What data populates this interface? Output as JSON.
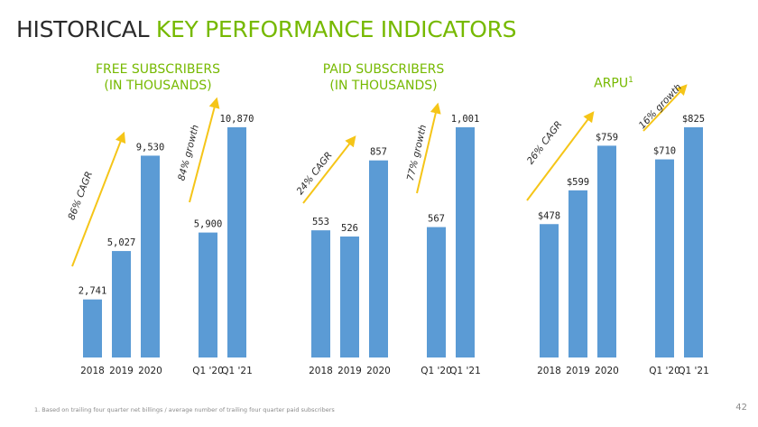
{
  "slide": {
    "title_dark": "HISTORICAL ",
    "title_accent": "KEY PERFORMANCE INDICATORS",
    "footnote": "1. Based on trailing four quarter net billings / average number of trailing four quarter paid subscribers",
    "page_number": "42"
  },
  "colors": {
    "bar": "#5b9bd5",
    "arrow": "#f5c518",
    "accent": "#76b900"
  },
  "chart_data": [
    {
      "type": "bar",
      "title_line1": "FREE SUBSCRIBERS",
      "title_line2": "(IN THOUSANDS)",
      "categories": [
        "2018",
        "2019",
        "2020",
        "Q1 '20",
        "Q1 '21"
      ],
      "values": [
        2741,
        5027,
        9530,
        5900,
        10870
      ],
      "value_labels": [
        "2,741",
        "5,027",
        "9,530",
        "5,900",
        "10,870"
      ],
      "ylim": [
        0,
        10870
      ],
      "annotations": [
        "86% CAGR",
        "84% growth"
      ]
    },
    {
      "type": "bar",
      "title_line1": "PAID SUBSCRIBERS",
      "title_line2": "(IN THOUSANDS)",
      "categories": [
        "2018",
        "2019",
        "2020",
        "Q1 '20",
        "Q1 '21"
      ],
      "values": [
        553,
        526,
        857,
        567,
        1001
      ],
      "value_labels": [
        "553",
        "526",
        "857",
        "567",
        "1,001"
      ],
      "ylim": [
        0,
        1001
      ],
      "annotations": [
        "24% CAGR",
        "77% growth"
      ]
    },
    {
      "type": "bar",
      "title_line1": "ARPU",
      "title_sup": "1",
      "categories": [
        "2018",
        "2019",
        "2020",
        "Q1 '20",
        "Q1 '21"
      ],
      "values": [
        478,
        599,
        759,
        710,
        825
      ],
      "value_labels": [
        "$478",
        "$599",
        "$759",
        "$710",
        "$825"
      ],
      "ylim": [
        0,
        825
      ],
      "annotations": [
        "26% CAGR",
        "16% growth"
      ]
    }
  ]
}
